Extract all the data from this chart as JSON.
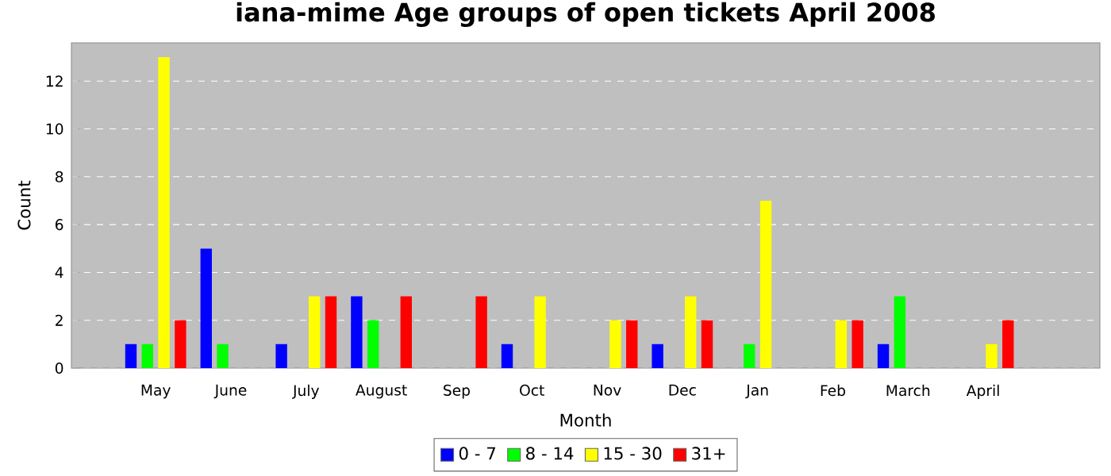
{
  "chart_data": {
    "type": "bar",
    "title": "iana-mime Age groups of open tickets April 2008",
    "xlabel": "Month",
    "ylabel": "Count",
    "categories": [
      "May",
      "June",
      "July",
      "August",
      "Sep",
      "Oct",
      "Nov",
      "Dec",
      "Jan",
      "Feb",
      "March",
      "April"
    ],
    "series": [
      {
        "name": "0 - 7",
        "color": "#0000ff",
        "values": [
          1,
          5,
          1,
          3,
          0,
          1,
          0,
          1,
          0,
          0,
          1,
          0
        ]
      },
      {
        "name": "8 - 14",
        "color": "#00ff00",
        "values": [
          1,
          1,
          0,
          2,
          0,
          0,
          0,
          0,
          1,
          0,
          3,
          0
        ]
      },
      {
        "name": "15 - 30",
        "color": "#ffff00",
        "values": [
          13,
          0,
          3,
          0,
          0,
          3,
          2,
          3,
          7,
          2,
          0,
          1
        ]
      },
      {
        "name": "31+",
        "color": "#ff0000",
        "values": [
          2,
          0,
          3,
          3,
          3,
          0,
          2,
          2,
          0,
          2,
          0,
          2
        ]
      }
    ],
    "ylim": [
      0,
      13.6
    ],
    "yticks": [
      0,
      2,
      4,
      6,
      8,
      10,
      12
    ],
    "grid": "y",
    "legend": "bottom"
  }
}
